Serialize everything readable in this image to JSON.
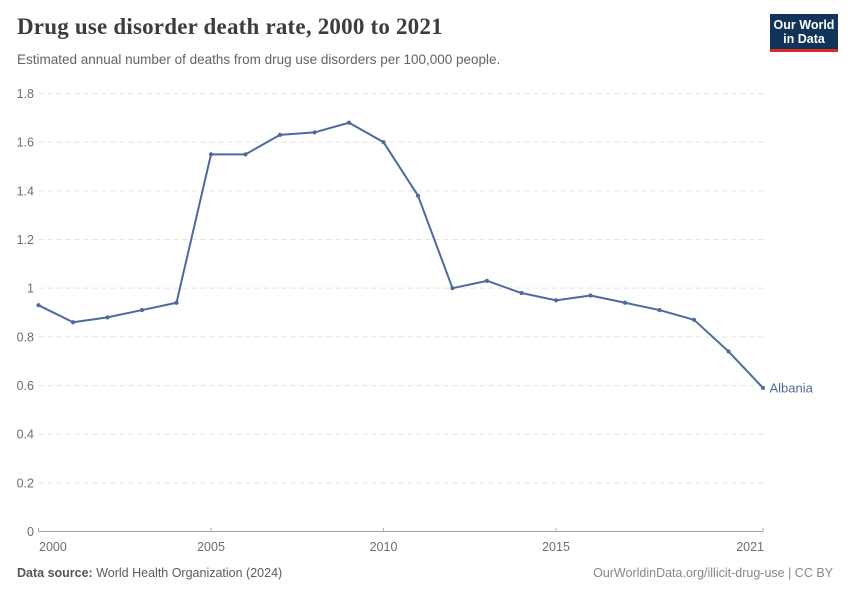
{
  "header": {
    "title": "Drug use disorder death rate, 2000 to 2021",
    "subtitle": "Estimated annual number of deaths from drug use disorders per 100,000 people.",
    "logo": {
      "line1": "Our World",
      "line2": "in Data",
      "bg_color": "#12335a",
      "accent_color": "#dc2a1c",
      "text_color": "#ffffff"
    }
  },
  "chart_data": {
    "type": "line",
    "title": "Drug use disorder death rate, 2000 to 2021",
    "subtitle": "Estimated annual number of deaths from drug use disorders per 100,000 people.",
    "entity": "Albania",
    "x": [
      2000,
      2001,
      2002,
      2003,
      2004,
      2005,
      2006,
      2007,
      2008,
      2009,
      2010,
      2011,
      2012,
      2013,
      2014,
      2015,
      2016,
      2017,
      2018,
      2019,
      2020,
      2021
    ],
    "series": [
      {
        "name": "Albania",
        "color": "#4c6a9c",
        "values": [
          0.93,
          0.86,
          0.88,
          0.91,
          0.94,
          1.55,
          1.55,
          1.63,
          1.64,
          1.68,
          1.6,
          1.38,
          1.0,
          1.03,
          0.98,
          0.95,
          0.97,
          0.94,
          0.91,
          0.87,
          0.74,
          0.59
        ]
      }
    ],
    "xlabel": "",
    "ylabel": "",
    "xlim": [
      2000,
      2021
    ],
    "ylim": [
      0,
      1.8
    ],
    "x_ticks": [
      2000,
      2005,
      2010,
      2015,
      2021
    ],
    "y_ticks": [
      0,
      0.2,
      0.4,
      0.6,
      0.8,
      1,
      1.2,
      1.4,
      1.6,
      1.8
    ],
    "grid": "horizontal dashed",
    "legend": "end-of-line label",
    "axis_color": "#a8a8a8",
    "grid_color": "#e3e3e3",
    "tick_label_color": "#6e6e6e"
  },
  "footer": {
    "source_label": "Data source:",
    "source_value": "World Health Organization (2024)",
    "credit": "OurWorldinData.org/illicit-drug-use | CC BY"
  }
}
